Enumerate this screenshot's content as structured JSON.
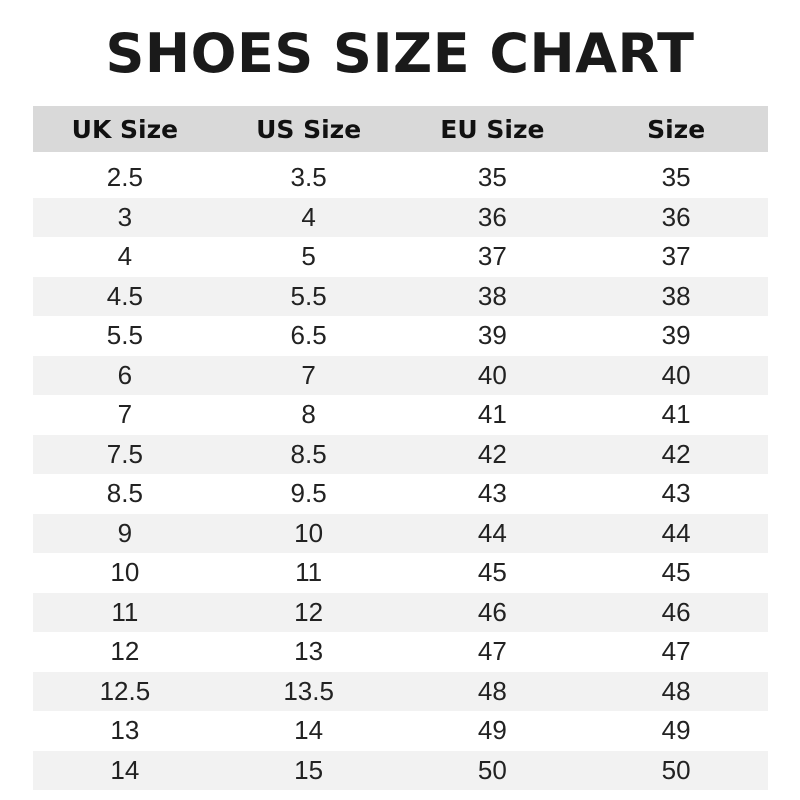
{
  "title": "SHOES SIZE CHART",
  "colors": {
    "header_bg": "#d9d9d9",
    "alt_row_bg": "#f2f2f2",
    "text": "#111111"
  },
  "columns": [
    "UK Size",
    "US Size",
    "EU Size",
    "Size"
  ],
  "rows": [
    [
      "2.5",
      "3.5",
      "35",
      "35"
    ],
    [
      "3",
      "4",
      "36",
      "36"
    ],
    [
      "4",
      "5",
      "37",
      "37"
    ],
    [
      "4.5",
      "5.5",
      "38",
      "38"
    ],
    [
      "5.5",
      "6.5",
      "39",
      "39"
    ],
    [
      "6",
      "7",
      "40",
      "40"
    ],
    [
      "7",
      "8",
      "41",
      "41"
    ],
    [
      "7.5",
      "8.5",
      "42",
      "42"
    ],
    [
      "8.5",
      "9.5",
      "43",
      "43"
    ],
    [
      "9",
      "10",
      "44",
      "44"
    ],
    [
      "10",
      "11",
      "45",
      "45"
    ],
    [
      "11",
      "12",
      "46",
      "46"
    ],
    [
      "12",
      "13",
      "47",
      "47"
    ],
    [
      "12.5",
      "13.5",
      "48",
      "48"
    ],
    [
      "13",
      "14",
      "49",
      "49"
    ],
    [
      "14",
      "15",
      "50",
      "50"
    ]
  ]
}
